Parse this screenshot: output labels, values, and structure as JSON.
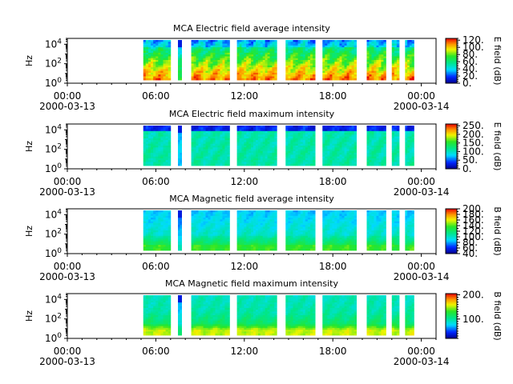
{
  "chart_data": [
    {
      "type": "heatmap",
      "title": "MCA  Electric field average intensity",
      "ylabel": "Hz",
      "y_scale": "log",
      "ylim": [
        1,
        40000
      ],
      "y_ticks": [
        {
          "value": 1,
          "base": "10",
          "exp": "0"
        },
        {
          "value": 100,
          "base": "10",
          "exp": "2"
        },
        {
          "value": 10000,
          "base": "10",
          "exp": "4"
        }
      ],
      "x_ticks": [
        {
          "hour": 0,
          "time": "00:00",
          "date": "2000-03-13"
        },
        {
          "hour": 6,
          "time": "06:00",
          "date": ""
        },
        {
          "hour": 12,
          "time": "12:00",
          "date": ""
        },
        {
          "hour": 18,
          "time": "18:00",
          "date": ""
        },
        {
          "hour": 24,
          "time": "00:00",
          "date": "2000-03-14"
        }
      ],
      "xlim_hours": [
        0,
        25
      ],
      "colorbar": {
        "label": "E field (dB)",
        "range": [
          0,
          125
        ],
        "ticks": [
          "0.",
          "20.",
          "40.",
          "60.",
          "80.",
          "100.",
          "120."
        ],
        "tick_values": [
          0,
          20,
          40,
          60,
          80,
          100,
          120
        ]
      },
      "profile": "e_avg"
    },
    {
      "type": "heatmap",
      "title": "MCA  Electric field maximum intensity",
      "ylabel": "Hz",
      "y_scale": "log",
      "ylim": [
        1,
        40000
      ],
      "y_ticks": [
        {
          "value": 1,
          "base": "10",
          "exp": "0"
        },
        {
          "value": 100,
          "base": "10",
          "exp": "2"
        },
        {
          "value": 10000,
          "base": "10",
          "exp": "4"
        }
      ],
      "x_ticks": [
        {
          "hour": 0,
          "time": "00:00",
          "date": "2000-03-13"
        },
        {
          "hour": 6,
          "time": "06:00",
          "date": ""
        },
        {
          "hour": 12,
          "time": "12:00",
          "date": ""
        },
        {
          "hour": 18,
          "time": "18:00",
          "date": ""
        },
        {
          "hour": 24,
          "time": "00:00",
          "date": "2000-03-14"
        }
      ],
      "xlim_hours": [
        0,
        25
      ],
      "colorbar": {
        "label": "E field (dB)",
        "range": [
          0,
          260
        ],
        "ticks": [
          "0.",
          "50.",
          "100.",
          "150.",
          "200.",
          "250."
        ],
        "tick_values": [
          0,
          50,
          100,
          150,
          200,
          250
        ]
      },
      "profile": "e_max"
    },
    {
      "type": "heatmap",
      "title": "MCA  Magnetic field average intensity",
      "ylabel": "Hz",
      "y_scale": "log",
      "ylim": [
        1,
        40000
      ],
      "y_ticks": [
        {
          "value": 1,
          "base": "10",
          "exp": "0"
        },
        {
          "value": 100,
          "base": "10",
          "exp": "2"
        },
        {
          "value": 10000,
          "base": "10",
          "exp": "4"
        }
      ],
      "x_ticks": [
        {
          "hour": 0,
          "time": "00:00",
          "date": "2000-03-13"
        },
        {
          "hour": 6,
          "time": "06:00",
          "date": ""
        },
        {
          "hour": 12,
          "time": "12:00",
          "date": ""
        },
        {
          "hour": 18,
          "time": "18:00",
          "date": ""
        },
        {
          "hour": 24,
          "time": "00:00",
          "date": "2000-03-14"
        }
      ],
      "xlim_hours": [
        0,
        25
      ],
      "colorbar": {
        "label": "B field (dB)",
        "range": [
          40,
          200
        ],
        "ticks": [
          "40.",
          "60.",
          "80.",
          "100.",
          "120.",
          "140.",
          "160.",
          "180.",
          "200."
        ],
        "tick_values": [
          40,
          60,
          80,
          100,
          120,
          140,
          160,
          180,
          200
        ]
      },
      "profile": "b_avg"
    },
    {
      "type": "heatmap",
      "title": "MCA  Magnetic field maximum intensity",
      "ylabel": "Hz",
      "y_scale": "log",
      "ylim": [
        1,
        40000
      ],
      "y_ticks": [
        {
          "value": 1,
          "base": "10",
          "exp": "0"
        },
        {
          "value": 100,
          "base": "10",
          "exp": "2"
        },
        {
          "value": 10000,
          "base": "10",
          "exp": "4"
        }
      ],
      "x_ticks": [
        {
          "hour": 0,
          "time": "00:00",
          "date": "2000-03-13"
        },
        {
          "hour": 6,
          "time": "06:00",
          "date": ""
        },
        {
          "hour": 12,
          "time": "12:00",
          "date": ""
        },
        {
          "hour": 18,
          "time": "18:00",
          "date": ""
        },
        {
          "hour": 24,
          "time": "00:00",
          "date": "2000-03-14"
        }
      ],
      "xlim_hours": [
        0,
        25
      ],
      "colorbar": {
        "label": "B field (dB)",
        "range": [
          20,
          205
        ],
        "ticks": [
          "100.",
          "200."
        ],
        "tick_values": [
          100,
          200
        ]
      },
      "profile": "b_max"
    }
  ],
  "data_intervals_hours": [
    [
      5.15,
      7.0
    ],
    [
      7.5,
      7.75
    ],
    [
      8.4,
      11.0
    ],
    [
      11.5,
      14.2
    ],
    [
      14.8,
      16.8
    ],
    [
      17.3,
      19.6
    ],
    [
      20.3,
      21.6
    ],
    [
      22.0,
      22.5
    ],
    [
      22.9,
      23.5
    ]
  ]
}
